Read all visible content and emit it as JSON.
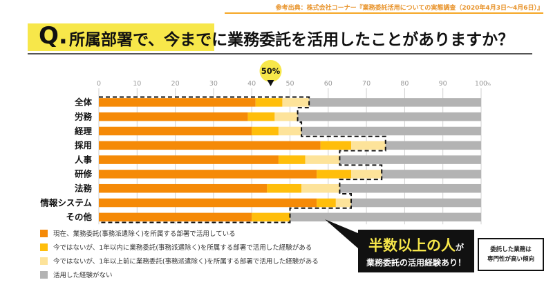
{
  "source_note": "参考出典：株式会社コーナー『業務委託活用についての実態調査（2020年4月3日〜4月6日）』",
  "question_mark": "Q.",
  "question": "所属部署で、今までに業務委託を活用したことがありますか？",
  "highlight_badge": "50%",
  "callout": {
    "main": "半数以上の人",
    "main_suffix": "が",
    "sub": "業務委託の活用経験あり！"
  },
  "side_note": {
    "line1": "委託した業務は",
    "line2": "専門性が高い傾向"
  },
  "colors": {
    "current": "#f58a07",
    "within_year": "#ffbe0b",
    "over_year": "#fde39a",
    "never": "#b3b3b3"
  },
  "chart_data": {
    "type": "bar",
    "orientation": "horizontal",
    "stacked": true,
    "categories": [
      "全体",
      "労務",
      "経理",
      "採用",
      "人事",
      "研修",
      "法務",
      "情報システム",
      "その他"
    ],
    "series": [
      {
        "name": "現在、業務委託(事務派遣除く)を所属する部署で活用している",
        "values": [
          41,
          39,
          40,
          58,
          47,
          57,
          44,
          57,
          40
        ]
      },
      {
        "name": "今ではないが、1年以内に業務委託(事務派遣除く)を所属する部署で活用した経験がある",
        "values": [
          7,
          7,
          7,
          8,
          7,
          9,
          9,
          5,
          10
        ]
      },
      {
        "name": "今ではないが、1年以上前に業務委託(事務派遣除く)を所属する部署で活用した経験がある",
        "values": [
          7,
          6,
          6,
          9,
          9,
          8,
          10,
          4,
          0
        ]
      },
      {
        "name": "活用した経験がない",
        "values": [
          45,
          48,
          47,
          25,
          37,
          26,
          37,
          34,
          50
        ]
      }
    ],
    "xlim": [
      0,
      100
    ],
    "xticks": [
      "0",
      "10",
      "20",
      "30",
      "40",
      "50",
      "60",
      "70",
      "80",
      "90",
      "100"
    ],
    "x_unit": "%",
    "grid": true,
    "annotation": "50%"
  }
}
